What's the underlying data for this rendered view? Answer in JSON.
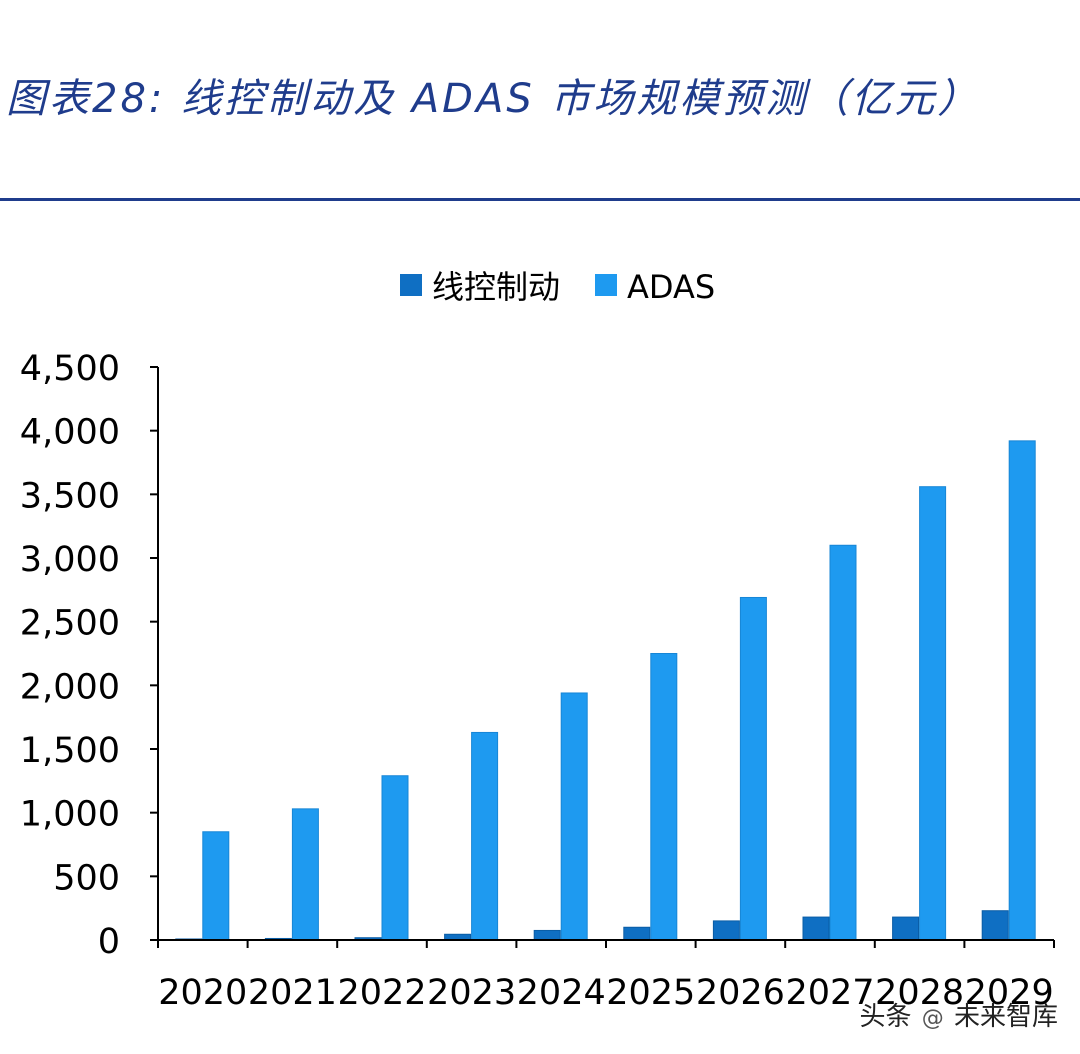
{
  "figure": {
    "title": "图表28:  线控制动及 ADAS 市场规模预测（亿元）"
  },
  "watermark": {
    "prefix": "头条",
    "icon": "at-icon",
    "name": "未来智库"
  },
  "chart_data": {
    "type": "bar",
    "title": "线控制动及 ADAS 市场规模预测（亿元）",
    "categories": [
      "2020",
      "2021",
      "2022",
      "2023",
      "2024",
      "2025",
      "2026",
      "2027",
      "2028",
      "2029"
    ],
    "series": [
      {
        "name": "线控制动",
        "color": "#0f6fc3",
        "values": [
          8,
          12,
          18,
          45,
          75,
          100,
          150,
          180,
          180,
          230
        ]
      },
      {
        "name": "ADAS",
        "color": "#1e9af0",
        "values": [
          850,
          1030,
          1290,
          1630,
          1940,
          2250,
          2690,
          3100,
          3560,
          3920
        ]
      }
    ],
    "xlabel": "",
    "ylabel": "",
    "ylim": [
      0,
      4500
    ],
    "yticks": [
      "0",
      "500",
      "1,000",
      "1,500",
      "2,000",
      "2,500",
      "3,000",
      "3,500",
      "4,000",
      "4,500"
    ],
    "legend_position": "top-center",
    "grid": false
  }
}
